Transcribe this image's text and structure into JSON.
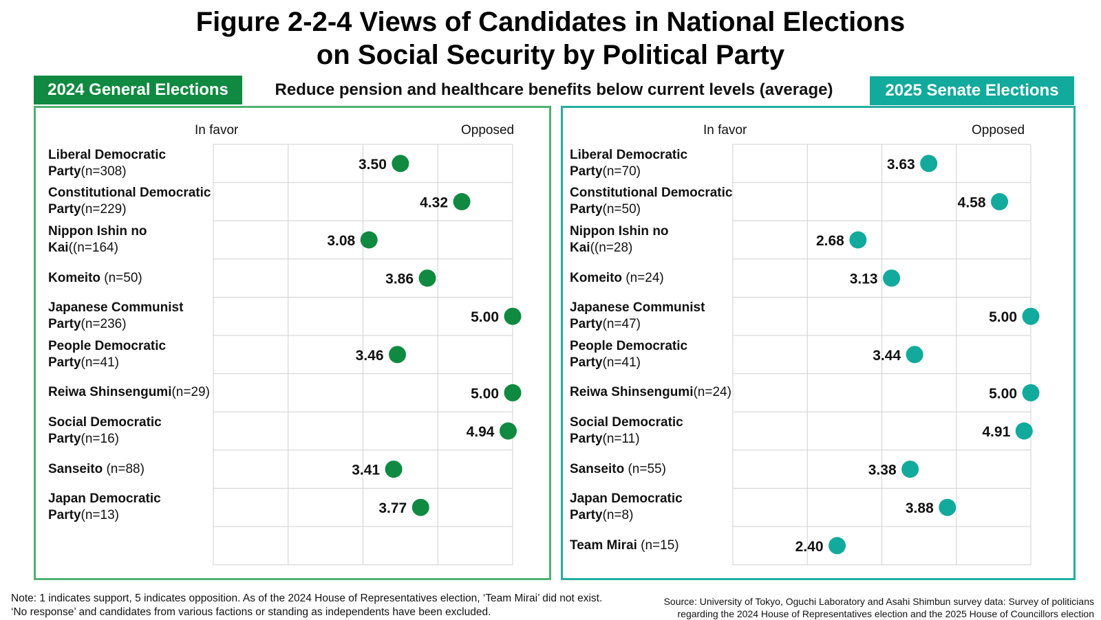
{
  "title": {
    "line1": "Figure 2-2-4 Views of Candidates in National Elections",
    "line2": "on Social Security by Political Party"
  },
  "subtitle": "Reduce pension and healthcare benefits below current levels (average)",
  "colors": {
    "left_dot": "#0f8a40",
    "right_dot": "#12aa9c",
    "left_frame": "#4db270",
    "right_frame": "#22aea0",
    "grid": "#d0d0d0"
  },
  "chart_data": [
    {
      "type": "scatter",
      "title": "2024 General Elections",
      "xlabel_left": "In favor",
      "xlabel_right": "Opposed",
      "xlim": [
        1,
        5
      ],
      "grid": true,
      "rows": [
        {
          "name": "Liberal Democratic Party",
          "bold": "Liberal Democratic Party",
          "n": "(n=308)",
          "value": 3.5,
          "label": "3.50"
        },
        {
          "name": "Constitutional Democratic Party",
          "bold": "Constitutional Democratic Party",
          "n": "(n=229)",
          "value": 4.32,
          "label": "4.32"
        },
        {
          "name": "Nippon Ishin no Kai",
          "bold": "Nippon Ishin no Kai",
          "n": "((n=164)",
          "value": 3.08,
          "label": "3.08"
        },
        {
          "name": "Komeito",
          "bold": "Komeito",
          "n": " (n=50)",
          "value": 3.86,
          "label": "3.86"
        },
        {
          "name": "Japanese Communist Party",
          "bold": "Japanese Communist Party",
          "n": "(n=236)",
          "value": 5.0,
          "label": "5.00"
        },
        {
          "name": "People Democratic Party",
          "bold": "People Democratic Party",
          "n": "(n=41)",
          "value": 3.46,
          "label": "3.46"
        },
        {
          "name": "Reiwa Shinsengumi",
          "bold": "Reiwa Shinsengumi",
          "n": "(n=29)",
          "value": 5.0,
          "label": "5.00"
        },
        {
          "name": "Social Democratic Party",
          "bold": "Social Democratic Party",
          "n": "(n=16)",
          "value": 4.94,
          "label": "4.94"
        },
        {
          "name": "Sanseito",
          "bold": "Sanseito",
          "n": " (n=88)",
          "value": 3.41,
          "label": "3.41"
        },
        {
          "name": "Japan Democratic Party",
          "bold": "Japan Democratic Party",
          "n": "(n=13)",
          "value": 3.77,
          "label": "3.77"
        },
        {
          "name": "",
          "bold": "",
          "n": "",
          "value": null,
          "label": ""
        }
      ]
    },
    {
      "type": "scatter",
      "title": "2025 Senate Elections",
      "xlabel_left": "In favor",
      "xlabel_right": "Opposed",
      "xlim": [
        1,
        5
      ],
      "grid": true,
      "rows": [
        {
          "name": "Liberal Democratic Party",
          "bold": "Liberal Democratic Party",
          "n": "(n=70)",
          "value": 3.63,
          "label": "3.63"
        },
        {
          "name": "Constitutional Democratic Party",
          "bold": "Constitutional Democratic Party",
          "n": "(n=50)",
          "value": 4.58,
          "label": "4.58"
        },
        {
          "name": "Nippon Ishin no Kai",
          "bold": "Nippon Ishin no Kai",
          "n": "((n=28)",
          "value": 2.68,
          "label": "2.68"
        },
        {
          "name": "Komeito",
          "bold": "Komeito",
          "n": " (n=24)",
          "value": 3.13,
          "label": "3.13"
        },
        {
          "name": "Japanese Communist Party",
          "bold": "Japanese Communist Party",
          "n": "(n=47)",
          "value": 5.0,
          "label": "5.00"
        },
        {
          "name": "People Democratic Party",
          "bold": "People Democratic Party",
          "n": "(n=41)",
          "value": 3.44,
          "label": "3.44"
        },
        {
          "name": "Reiwa Shinsengumi",
          "bold": "Reiwa Shinsengumi",
          "n": "(n=24)",
          "value": 5.0,
          "label": "5.00"
        },
        {
          "name": "Social Democratic Party",
          "bold": "Social Democratic Party",
          "n": "(n=11)",
          "value": 4.91,
          "label": "4.91"
        },
        {
          "name": "Sanseito",
          "bold": "Sanseito",
          "n": " (n=55)",
          "value": 3.38,
          "label": "3.38"
        },
        {
          "name": "Japan Democratic Party",
          "bold": "Japan Democratic Party",
          "n": "(n=8)",
          "value": 3.88,
          "label": "3.88"
        },
        {
          "name": "Team Mirai",
          "bold": "Team Mirai",
          "n": " (n=15)",
          "value": 2.4,
          "label": "2.40"
        }
      ]
    }
  ],
  "note": {
    "line1": "Note: 1 indicates support, 5 indicates opposition. As of the 2024 House of Representatives election, ‘Team Mirai’ did not exist.",
    "line2": "‘No response’ and candidates from various factions or standing as independents have been excluded."
  },
  "source": {
    "line1": "Source: University of Tokyo, Oguchi Laboratory and Asahi Shimbun survey data: Survey of politicians",
    "line2": "regarding the 2024 House of Representatives election and the 2025 House of Councillors election"
  }
}
